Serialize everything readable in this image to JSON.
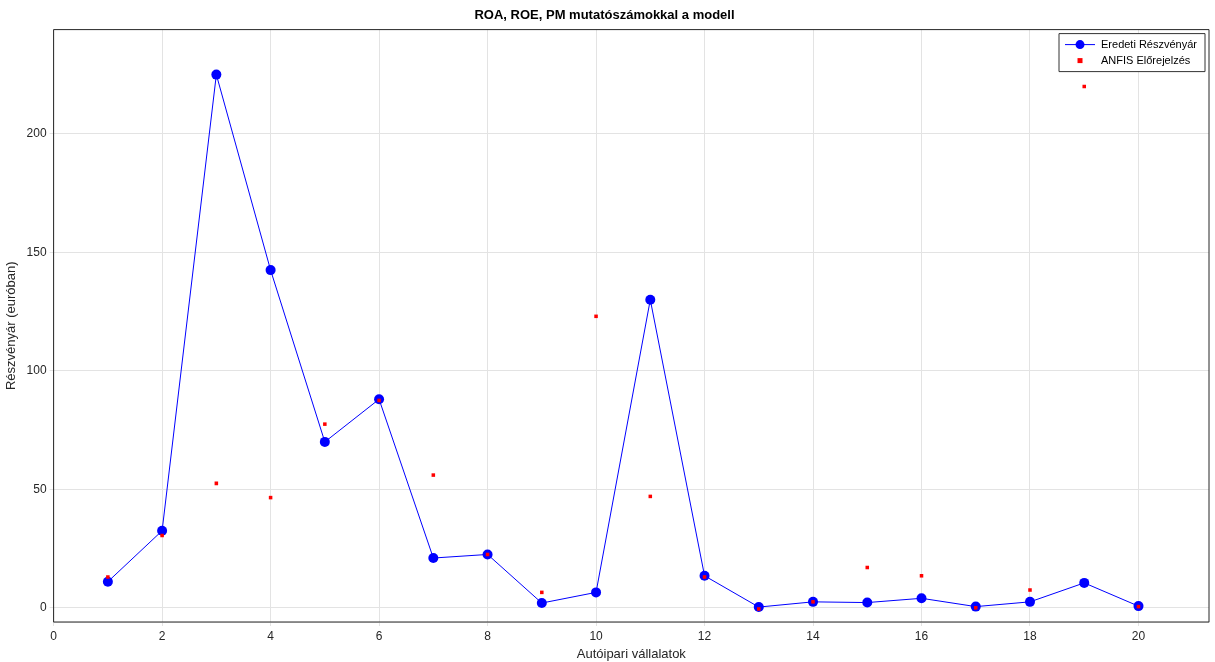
{
  "chart_data": {
    "type": "line",
    "title": "ROA, ROE, PM mutatószámokkal a modell",
    "xlabel": "Autóipari vállalatok",
    "ylabel": "Részvényár (euróban)",
    "x": [
      1,
      2,
      3,
      4,
      5,
      6,
      7,
      8,
      9,
      10,
      11,
      12,
      13,
      14,
      15,
      16,
      17,
      18,
      19,
      20
    ],
    "series": [
      {
        "name": "Eredeti Részvényár",
        "marker": "circle",
        "color": "#0000ff",
        "values": [
          11,
          32.5,
          225,
          142.5,
          70,
          88,
          21,
          22.5,
          2,
          6.5,
          130,
          13.5,
          0.3,
          2.5,
          2.2,
          4,
          0.5,
          2.5,
          10.5,
          0.7
        ]
      },
      {
        "name": "ANFIS Előrejelzés",
        "type": "scatter",
        "marker": "square",
        "color": "#ff0000",
        "values": [
          13,
          30.5,
          52.5,
          46.5,
          77.5,
          87.5,
          56,
          22.5,
          6.5,
          123,
          47,
          13,
          -0.5,
          2.5,
          17,
          13.5,
          0,
          7.5,
          220,
          0.5
        ]
      }
    ],
    "xlim": [
      0,
      21.3
    ],
    "xticks": [
      0,
      2,
      4,
      6,
      8,
      10,
      12,
      14,
      16,
      18,
      20
    ],
    "ylim": [
      -6,
      244
    ],
    "yticks": [
      0,
      50,
      100,
      150,
      200
    ],
    "grid": true,
    "legend": "top right"
  }
}
